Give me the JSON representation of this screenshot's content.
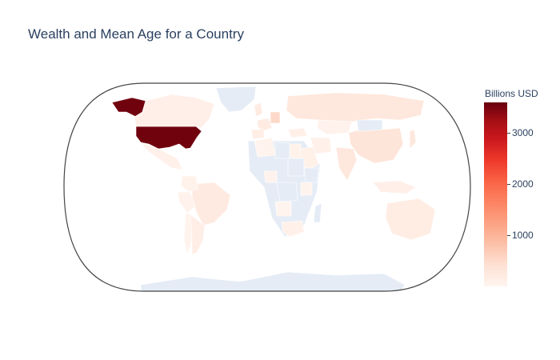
{
  "title": "Wealth and Mean Age for a Country",
  "chart_data": {
    "type": "choropleth",
    "projection": "natural-earth",
    "colorscale": "Reds",
    "no_data_color": "#e5ecf6",
    "colorbar": {
      "title": "Billions USD",
      "ticks": [
        1000,
        2000,
        3000
      ],
      "range": [
        0,
        3600
      ]
    },
    "countries": [
      {
        "name": "United States",
        "value": 3550
      },
      {
        "name": "Alaska (United States)",
        "value": 3550
      },
      {
        "name": "Canada",
        "value": 120
      },
      {
        "name": "Mexico",
        "value": 90
      },
      {
        "name": "Brazil",
        "value": 220
      },
      {
        "name": "Argentina",
        "value": 140
      },
      {
        "name": "Peru",
        "value": 60
      },
      {
        "name": "Colombia",
        "value": 70
      },
      {
        "name": "Chile",
        "value": 50
      },
      {
        "name": "Greenland",
        "value": null
      },
      {
        "name": "Russia",
        "value": 290
      },
      {
        "name": "China",
        "value": 330
      },
      {
        "name": "India",
        "value": 280
      },
      {
        "name": "Germany",
        "value": 520
      },
      {
        "name": "France",
        "value": 200
      },
      {
        "name": "United Kingdom",
        "value": 210
      },
      {
        "name": "Spain",
        "value": 150
      },
      {
        "name": "Turkey",
        "value": 130
      },
      {
        "name": "Iran",
        "value": 100
      },
      {
        "name": "Saudi Arabia",
        "value": 110
      },
      {
        "name": "Kazakhstan",
        "value": 60
      },
      {
        "name": "Mongolia",
        "value": null
      },
      {
        "name": "Japan",
        "value": 260
      },
      {
        "name": "Indonesia",
        "value": 120
      },
      {
        "name": "Australia",
        "value": 170
      },
      {
        "name": "South Africa",
        "value": 80
      },
      {
        "name": "Egypt",
        "value": 70
      },
      {
        "name": "Libya",
        "value": null
      },
      {
        "name": "Algeria",
        "value": 40
      },
      {
        "name": "Nigeria",
        "value": 60
      },
      {
        "name": "Sudan",
        "value": null
      },
      {
        "name": "Ethiopia",
        "value": null
      },
      {
        "name": "Congo (DRC)",
        "value": null
      },
      {
        "name": "Kenya",
        "value": 40
      },
      {
        "name": "Angola",
        "value": 30
      },
      {
        "name": "Madagascar",
        "value": null
      },
      {
        "name": "Antarctica",
        "value": null
      }
    ]
  }
}
